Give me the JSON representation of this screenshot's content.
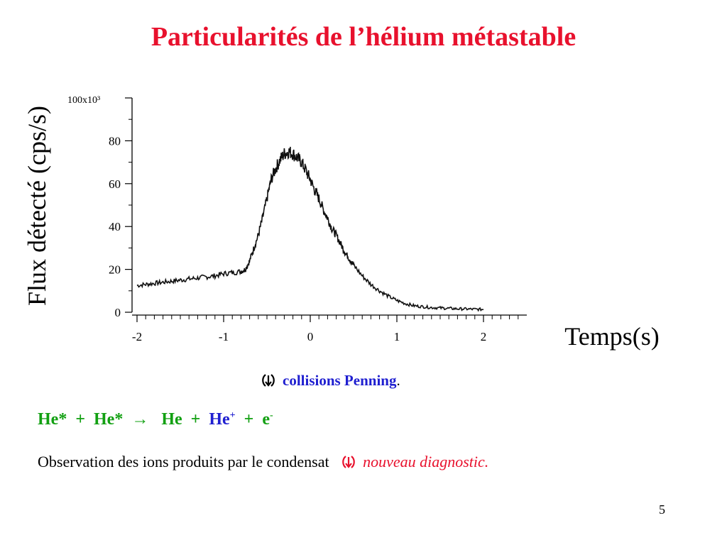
{
  "slide": {
    "title": "Particularités de l’hélium métastable",
    "page_number": "5"
  },
  "chart_data": {
    "type": "line",
    "ylabel": "Flux détecté (cps/s)",
    "xlabel": "Temps(s)",
    "y_unit_label": "100x10³",
    "xlim": [
      -2,
      2
    ],
    "ylim": [
      0,
      100
    ],
    "x_ticks": [
      "-2",
      "-1",
      "0",
      "1",
      "2"
    ],
    "y_ticks": [
      "0",
      "20",
      "40",
      "60",
      "80"
    ],
    "x_minor_step": 0.1,
    "series": [
      {
        "values_x": [
          -2.0,
          -1.9,
          -1.8,
          -1.7,
          -1.6,
          -1.5,
          -1.4,
          -1.3,
          -1.2,
          -1.1,
          -1.0,
          -0.9,
          -0.8,
          -0.75,
          -0.7,
          -0.65,
          -0.6,
          -0.55,
          -0.5,
          -0.45,
          -0.4,
          -0.35,
          -0.3,
          -0.25,
          -0.2,
          -0.15,
          -0.1,
          -0.05,
          0.0,
          0.05,
          0.1,
          0.15,
          0.2,
          0.25,
          0.3,
          0.35,
          0.4,
          0.45,
          0.5,
          0.6,
          0.7,
          0.8,
          0.9,
          1.0,
          1.1,
          1.2,
          1.3,
          1.4,
          1.5,
          1.6,
          1.7,
          1.8,
          1.9,
          2.0
        ],
        "values_y": [
          12.5,
          13,
          13.5,
          14,
          14.5,
          15,
          15.5,
          16,
          16.5,
          17,
          18,
          18.5,
          19,
          20,
          24,
          30,
          36,
          44,
          53,
          62,
          67,
          71,
          74,
          75,
          74,
          72,
          70,
          66,
          62,
          57,
          53,
          48,
          44,
          39,
          36,
          32,
          28,
          25,
          22,
          17,
          13,
          10,
          7.5,
          5.5,
          4,
          3,
          2.6,
          2.2,
          2,
          1.8,
          1.6,
          1.5,
          1.4,
          1.3
        ]
      }
    ]
  },
  "text": {
    "penning_label": "collisions Penning",
    "penning_suffix": ".",
    "eq_left": "He*  +  He*",
    "eq_arrow": "→",
    "eq_right_he": "He  +  ",
    "eq_hep": "He",
    "eq_hep_sup": "+",
    "eq_plus_e": "  +  e",
    "eq_e_sup": "-",
    "observation": "Observation des ions produits par le condensat",
    "diagnostic": "nouveau diagnostic."
  },
  "icons": {
    "bullet_glyph": "arrow-bullet-icon"
  },
  "colors": {
    "title": "#e8112d",
    "blue": "#1f1fd0",
    "green": "#12a012",
    "curve": "#111111"
  }
}
